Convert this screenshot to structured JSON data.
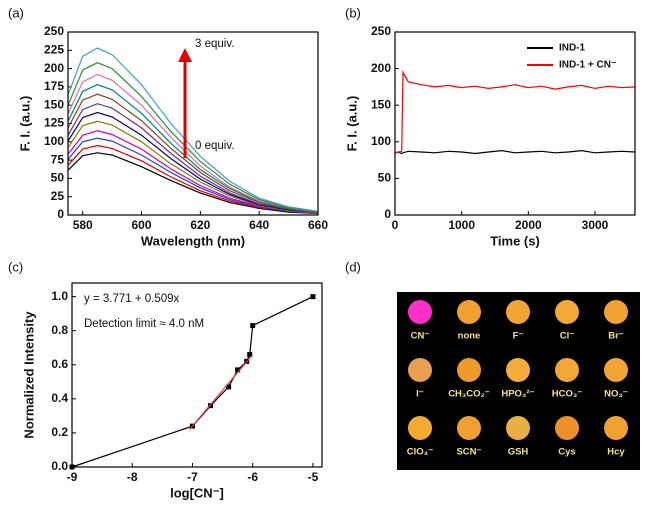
{
  "chart_data": [
    {
      "type": "line",
      "panel_label": "(a)",
      "xlabel": "Wavelength (nm)",
      "ylabel": "F. I. (a.u.)",
      "x": [
        575,
        580,
        585,
        590,
        600,
        610,
        620,
        630,
        640,
        650,
        660
      ],
      "series": [
        {
          "color": "#000000",
          "values": [
            61,
            81,
            85,
            82,
            66,
            47,
            30,
            17,
            9,
            4,
            2
          ]
        },
        {
          "color": "#e00000",
          "values": [
            68,
            90,
            95,
            91,
            74,
            52,
            33,
            19,
            10,
            5,
            2
          ]
        },
        {
          "color": "#1f3fd0",
          "values": [
            76,
            100,
            105,
            101,
            82,
            58,
            37,
            21,
            11,
            5,
            2
          ]
        },
        {
          "color": "#d000c0",
          "values": [
            83,
            109,
            115,
            110,
            90,
            63,
            40,
            23,
            12,
            6,
            2
          ]
        },
        {
          "color": "#808000",
          "values": [
            92,
            122,
            128,
            123,
            100,
            70,
            45,
            26,
            13,
            6,
            3
          ]
        },
        {
          "color": "#000080",
          "values": [
            101,
            133,
            140,
            134,
            109,
            77,
            49,
            28,
            14,
            7,
            3
          ]
        },
        {
          "color": "#7030a0",
          "values": [
            109,
            144,
            152,
            146,
            119,
            84,
            53,
            30,
            15,
            8,
            3
          ]
        },
        {
          "color": "#8b4513",
          "values": [
            119,
            157,
            165,
            158,
            129,
            91,
            58,
            33,
            17,
            8,
            3
          ]
        },
        {
          "color": "#008080",
          "values": [
            128,
            169,
            178,
            171,
            139,
            98,
            62,
            36,
            18,
            9,
            4
          ]
        },
        {
          "color": "#e070a0",
          "values": [
            138,
            182,
            192,
            184,
            150,
            106,
            67,
            38,
            19,
            10,
            4
          ]
        },
        {
          "color": "#2e8b2e",
          "values": [
            150,
            198,
            208,
            200,
            162,
            114,
            73,
            42,
            21,
            10,
            4
          ]
        },
        {
          "color": "#40a0c0",
          "values": [
            164,
            217,
            228,
            219,
            178,
            125,
            80,
            46,
            23,
            11,
            5
          ]
        }
      ],
      "xlim": [
        575,
        660
      ],
      "xticks": [
        580,
        600,
        620,
        640,
        660
      ],
      "ylim": [
        0,
        250
      ],
      "yticks": [
        0,
        25,
        50,
        75,
        100,
        125,
        150,
        175,
        200,
        225,
        250
      ],
      "annotations": [
        "3 equiv.",
        "0 equiv."
      ]
    },
    {
      "type": "line",
      "panel_label": "(b)",
      "xlabel": "Time (s)",
      "ylabel": "F. I. (a.u.)",
      "x": [
        0,
        50,
        100,
        120,
        200,
        400,
        600,
        800,
        1000,
        1200,
        1400,
        1600,
        1800,
        2000,
        2200,
        2400,
        2600,
        2800,
        3000,
        3200,
        3400,
        3600
      ],
      "series": [
        {
          "name": "IND-1",
          "color": "#000000",
          "values": [
            85,
            86,
            84,
            85,
            87,
            86,
            85,
            87,
            86,
            84,
            86,
            88,
            85,
            86,
            87,
            85,
            86,
            88,
            85,
            86,
            87,
            86
          ]
        },
        {
          "name": "IND-1 + CN⁻",
          "color": "#ff0000",
          "values": [
            85,
            86,
            87,
            195,
            182,
            178,
            175,
            177,
            174,
            176,
            173,
            175,
            178,
            174,
            176,
            172,
            175,
            177,
            173,
            176,
            174,
            175
          ]
        }
      ],
      "xlim": [
        0,
        3600
      ],
      "xticks": [
        0,
        1000,
        2000,
        3000
      ],
      "ylim": [
        0,
        250
      ],
      "yticks": [
        0,
        50,
        100,
        150,
        200,
        250
      ],
      "legend": "top-right"
    },
    {
      "type": "scatter",
      "panel_label": "(c)",
      "xlabel": "log[CN⁻]",
      "ylabel": "Normalized Intensity",
      "series": [
        {
          "color": "#000000",
          "x": [
            -9,
            -7,
            -6.7,
            -6.4,
            -6.25,
            -6.1,
            -6.05,
            -6,
            -5
          ],
          "values": [
            0,
            0.24,
            0.36,
            0.47,
            0.57,
            0.62,
            0.66,
            0.83,
            1.0
          ],
          "markers": true
        },
        {
          "color": "#e04040",
          "x": [
            -7.05,
            -6.0
          ],
          "values": [
            0.22,
            0.66
          ],
          "markers": false
        }
      ],
      "xlim": [
        -9,
        -4.85
      ],
      "xticks": [
        -9,
        -8,
        -7,
        -6,
        -5
      ],
      "ylim": [
        0,
        1.08
      ],
      "yticks": [
        {
          "value": 0,
          "label": "0.0"
        },
        0.2,
        0.4,
        0.6,
        0.8,
        {
          "value": 1,
          "label": "1.0"
        }
      ],
      "annotations": [
        "y = 3.771 + 0.509x",
        "Detection limit ≈ 4.0 nM"
      ]
    }
  ],
  "photo": {
    "panel_label": "(d)",
    "items": [
      {
        "label": "CN⁻",
        "color": "#ff30c8"
      },
      {
        "label": "none",
        "color": "#f0a030"
      },
      {
        "label": "F⁻",
        "color": "#f2a434"
      },
      {
        "label": "Cl⁻",
        "color": "#f3a838"
      },
      {
        "label": "Br⁻",
        "color": "#f2a232"
      },
      {
        "label": "I⁻",
        "color": "#e8a050"
      },
      {
        "label": "CH₃CO₂⁻",
        "color": "#ee9a2c"
      },
      {
        "label": "HPO₄²⁻",
        "color": "#f4ac3c"
      },
      {
        "label": "HCO₃⁻",
        "color": "#f2a636"
      },
      {
        "label": "NO₃⁻",
        "color": "#f0a434"
      },
      {
        "label": "ClO₄⁻",
        "color": "#f3aa30"
      },
      {
        "label": "SCN⁻",
        "color": "#f0a030"
      },
      {
        "label": "GSH",
        "color": "#e8b040"
      },
      {
        "label": "Cys",
        "color": "#ee9028"
      },
      {
        "label": "Hcy",
        "color": "#f2a030"
      }
    ]
  }
}
